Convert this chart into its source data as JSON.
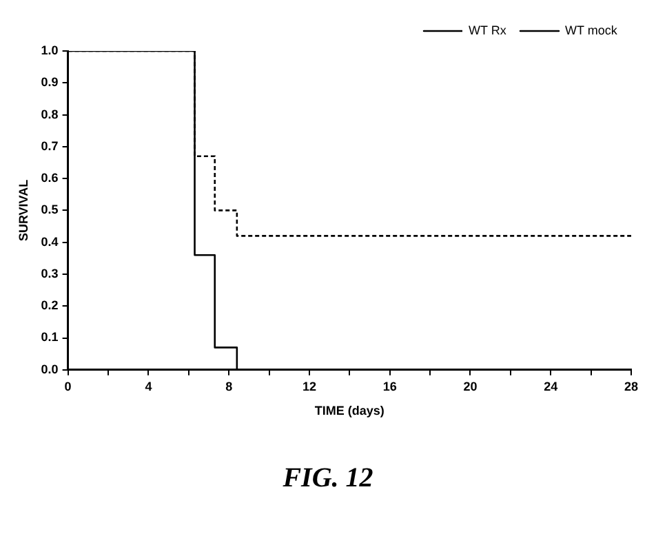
{
  "chart_data": {
    "type": "step",
    "xlabel": "TIME (days)",
    "ylabel": "SURVIVAL",
    "annotations": [
      "FIG. 12"
    ],
    "series": [
      {
        "name": "WT Rx",
        "color": "#000000",
        "line_style": "dashed",
        "x": [
          0,
          6.3,
          7.3,
          8.4,
          28
        ],
        "values": [
          1.0,
          0.67,
          0.5,
          0.42,
          0.42
        ]
      },
      {
        "name": "WT mock",
        "color": "#000000",
        "line_style": "solid",
        "x": [
          0,
          6.3,
          7.3,
          8.4,
          28
        ],
        "values": [
          1.0,
          0.36,
          0.07,
          0.0,
          0.0
        ]
      }
    ],
    "xlim": [
      0,
      28
    ],
    "xticks": [
      0,
      {
        "value": 2,
        "label": null
      },
      4,
      {
        "value": 6,
        "label": null
      },
      8,
      {
        "value": 10,
        "label": null
      },
      12,
      {
        "value": 14,
        "label": null
      },
      16,
      {
        "value": 18,
        "label": null
      },
      20,
      {
        "value": 22,
        "label": null
      },
      24,
      {
        "value": 26,
        "label": null
      },
      28
    ],
    "ylim": [
      0,
      1
    ],
    "yticks": [
      {
        "value": 0,
        "label": "0.0"
      },
      {
        "value": 0.1,
        "label": "0.1"
      },
      {
        "value": 0.2,
        "label": "0.2"
      },
      {
        "value": 0.3,
        "label": "0.3"
      },
      {
        "value": 0.4,
        "label": "0.4"
      },
      {
        "value": 0.5,
        "label": "0.5"
      },
      {
        "value": 0.6,
        "label": "0.6"
      },
      {
        "value": 0.7,
        "label": "0.7"
      },
      {
        "value": 0.8,
        "label": "0.8"
      },
      {
        "value": 0.9,
        "label": "0.9"
      },
      {
        "value": 1,
        "label": "1.0"
      }
    ],
    "grid": false,
    "legend": "top right",
    "marker": "none"
  }
}
